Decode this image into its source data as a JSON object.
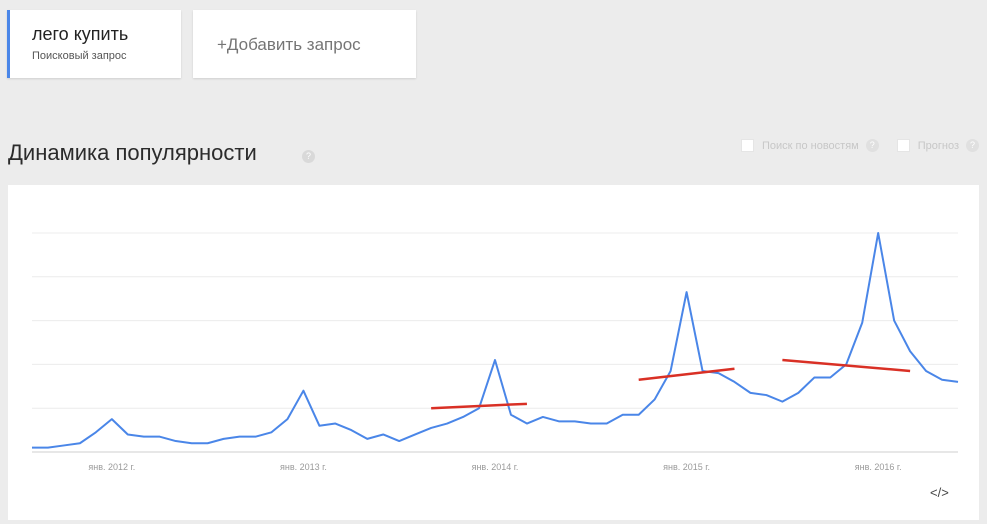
{
  "queries": [
    {
      "term": "лего купить",
      "subtitle": "Поисковый запрос"
    }
  ],
  "add_query_label": "+Добавить запрос",
  "section_title": "Динамика популярности",
  "help_glyph": "?",
  "options": {
    "news_search_label": "Поиск по новостям",
    "forecast_label": "Прогноз"
  },
  "embed_glyph": "</>",
  "colors": {
    "line": "#4a86e8",
    "annotation": "#d93025",
    "accent": "#4a86e8"
  },
  "chart_data": {
    "type": "line",
    "x_tick_labels": [
      "янв. 2012 г.",
      "янв. 2013 г.",
      "янв. 2014 г.",
      "янв. 2015 г.",
      "янв. 2016 г."
    ],
    "x": [
      "2011-08",
      "2011-09",
      "2011-10",
      "2011-11",
      "2011-12",
      "2012-01",
      "2012-02",
      "2012-03",
      "2012-04",
      "2012-05",
      "2012-06",
      "2012-07",
      "2012-08",
      "2012-09",
      "2012-10",
      "2012-11",
      "2012-12",
      "2013-01",
      "2013-02",
      "2013-03",
      "2013-04",
      "2013-05",
      "2013-06",
      "2013-07",
      "2013-08",
      "2013-09",
      "2013-10",
      "2013-11",
      "2013-12",
      "2014-01",
      "2014-02",
      "2014-03",
      "2014-04",
      "2014-05",
      "2014-06",
      "2014-07",
      "2014-08",
      "2014-09",
      "2014-10",
      "2014-11",
      "2014-12",
      "2015-01",
      "2015-02",
      "2015-03",
      "2015-04",
      "2015-05",
      "2015-06",
      "2015-07",
      "2015-08",
      "2015-09",
      "2015-10",
      "2015-11",
      "2015-12",
      "2016-01",
      "2016-02",
      "2016-03",
      "2016-04",
      "2016-05",
      "2016-06"
    ],
    "series": [
      {
        "values": [
          2,
          2,
          3,
          4,
          9,
          15,
          8,
          7,
          7,
          5,
          4,
          4,
          6,
          7,
          7,
          9,
          15,
          28,
          12,
          13,
          10,
          6,
          8,
          5,
          8,
          11,
          13,
          16,
          20,
          42,
          17,
          13,
          16,
          14,
          14,
          13,
          13,
          17,
          17,
          24,
          37,
          73,
          37,
          36,
          32,
          27,
          26,
          23,
          27,
          34,
          34,
          40,
          59,
          100,
          60,
          46,
          37,
          33,
          32
        ]
      }
    ],
    "annotations": [
      {
        "type": "trend-line",
        "from": {
          "x": "2013-09",
          "y": 20
        },
        "to": {
          "x": "2014-03",
          "y": 22
        }
      },
      {
        "type": "trend-line",
        "from": {
          "x": "2014-10",
          "y": 33
        },
        "to": {
          "x": "2015-04",
          "y": 38
        }
      },
      {
        "type": "trend-line",
        "from": {
          "x": "2015-07",
          "y": 42
        },
        "to": {
          "x": "2016-03",
          "y": 37
        }
      }
    ],
    "ylim": [
      0,
      100
    ],
    "grid": "horizontal"
  }
}
